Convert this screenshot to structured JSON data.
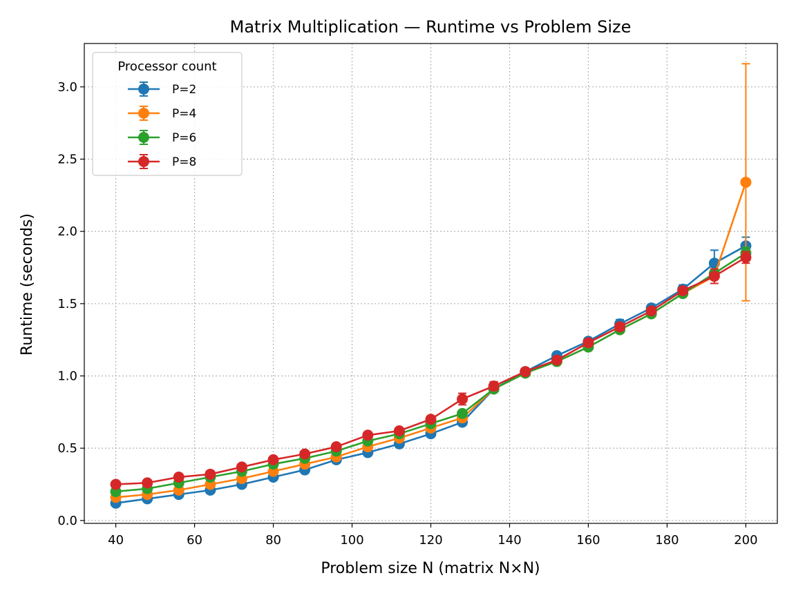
{
  "chart_data": {
    "type": "line",
    "title": "Matrix Multiplication — Runtime vs Problem Size",
    "xlabel": "Problem size N (matrix N×N)",
    "ylabel": "Runtime (seconds)",
    "xlim": [
      32,
      208
    ],
    "ylim": [
      -0.02,
      3.3
    ],
    "xticks": [
      40,
      60,
      80,
      100,
      120,
      140,
      160,
      180,
      200
    ],
    "yticks": [
      0.0,
      0.5,
      1.0,
      1.5,
      2.0,
      2.5,
      3.0
    ],
    "grid": true,
    "legend": {
      "title": "Processor count",
      "placement": "top-left"
    },
    "x": [
      40,
      48,
      56,
      64,
      72,
      80,
      88,
      96,
      104,
      112,
      120,
      128,
      136,
      144,
      152,
      160,
      168,
      176,
      184,
      192,
      200
    ],
    "series": [
      {
        "name": "P=2",
        "color": "#1f77b4",
        "values": [
          0.12,
          0.15,
          0.18,
          0.21,
          0.25,
          0.3,
          0.35,
          0.42,
          0.47,
          0.53,
          0.6,
          0.68,
          0.91,
          1.03,
          1.14,
          1.24,
          1.36,
          1.47,
          1.6,
          1.78,
          1.9
        ],
        "errors": [
          0.01,
          0.01,
          0.01,
          0.01,
          0.01,
          0.01,
          0.01,
          0.01,
          0.01,
          0.01,
          0.01,
          0.02,
          0.02,
          0.02,
          0.02,
          0.02,
          0.03,
          0.02,
          0.03,
          0.09,
          0.06
        ]
      },
      {
        "name": "P=4",
        "color": "#ff7f0e",
        "values": [
          0.16,
          0.18,
          0.21,
          0.25,
          0.29,
          0.34,
          0.39,
          0.44,
          0.51,
          0.57,
          0.64,
          0.71,
          0.91,
          1.02,
          1.1,
          1.2,
          1.32,
          1.43,
          1.57,
          1.69,
          2.34
        ],
        "errors": [
          0.01,
          0.01,
          0.01,
          0.01,
          0.01,
          0.01,
          0.01,
          0.01,
          0.01,
          0.01,
          0.01,
          0.01,
          0.01,
          0.01,
          0.01,
          0.01,
          0.01,
          0.01,
          0.02,
          0.02,
          0.82
        ]
      },
      {
        "name": "P=6",
        "color": "#2ca02c",
        "values": [
          0.2,
          0.22,
          0.26,
          0.3,
          0.34,
          0.39,
          0.43,
          0.48,
          0.55,
          0.6,
          0.67,
          0.74,
          0.91,
          1.02,
          1.1,
          1.2,
          1.32,
          1.43,
          1.57,
          1.71,
          1.85
        ],
        "errors": [
          0.01,
          0.01,
          0.01,
          0.01,
          0.01,
          0.01,
          0.01,
          0.01,
          0.01,
          0.01,
          0.01,
          0.02,
          0.01,
          0.01,
          0.01,
          0.02,
          0.02,
          0.01,
          0.02,
          0.02,
          0.04
        ]
      },
      {
        "name": "P=8",
        "color": "#d62728",
        "values": [
          0.25,
          0.26,
          0.3,
          0.32,
          0.37,
          0.42,
          0.46,
          0.51,
          0.59,
          0.62,
          0.7,
          0.84,
          0.93,
          1.03,
          1.11,
          1.23,
          1.34,
          1.45,
          1.59,
          1.69,
          1.82
        ],
        "errors": [
          0.01,
          0.01,
          0.01,
          0.01,
          0.01,
          0.01,
          0.01,
          0.01,
          0.01,
          0.01,
          0.01,
          0.04,
          0.03,
          0.01,
          0.01,
          0.01,
          0.01,
          0.01,
          0.02,
          0.05,
          0.04
        ]
      }
    ]
  }
}
